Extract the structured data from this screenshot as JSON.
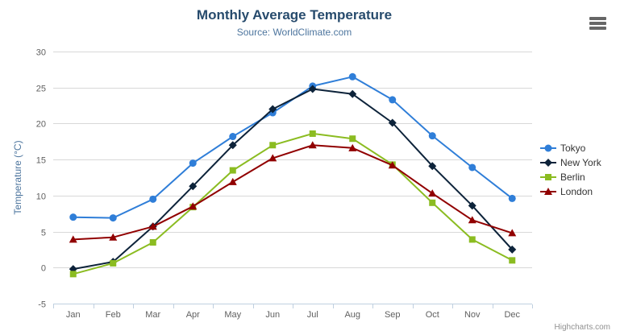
{
  "chart_data": {
    "type": "line",
    "title": "Monthly Average Temperature",
    "subtitle": "Source: WorldClimate.com",
    "categories": [
      "Jan",
      "Feb",
      "Mar",
      "Apr",
      "May",
      "Jun",
      "Jul",
      "Aug",
      "Sep",
      "Oct",
      "Nov",
      "Dec"
    ],
    "series": [
      {
        "name": "Tokyo",
        "color": "#2f7ed8",
        "marker": "circle",
        "values": [
          7.0,
          6.9,
          9.5,
          14.5,
          18.2,
          21.5,
          25.2,
          26.5,
          23.3,
          18.3,
          13.9,
          9.6
        ]
      },
      {
        "name": "New York",
        "color": "#0d233a",
        "marker": "diamond",
        "values": [
          -0.2,
          0.8,
          5.7,
          11.3,
          17.0,
          22.0,
          24.8,
          24.1,
          20.1,
          14.1,
          8.6,
          2.5
        ]
      },
      {
        "name": "Berlin",
        "color": "#8bbc21",
        "marker": "square",
        "values": [
          -0.9,
          0.6,
          3.5,
          8.4,
          13.5,
          17.0,
          18.6,
          17.9,
          14.3,
          9.0,
          3.9,
          1.0
        ]
      },
      {
        "name": "London",
        "color": "#910000",
        "marker": "triangle",
        "values": [
          3.9,
          4.2,
          5.7,
          8.5,
          11.9,
          15.2,
          17.0,
          16.6,
          14.2,
          10.3,
          6.6,
          4.8
        ]
      }
    ],
    "xlabel": "",
    "ylabel": "Temperature (°C)",
    "ylim": [
      -5,
      30
    ],
    "ytick_interval": 5,
    "grid": true,
    "legend_position": "right",
    "credit": "Highcharts.com"
  },
  "colors": {
    "background": "#ffffff",
    "title": "#274b6d",
    "subtitle": "#4d759e",
    "axis_title": "#4d759e",
    "tick_label": "#606060",
    "grid": "#d8d8d8",
    "axis_line": "#c0d0e0",
    "legend_text": "#333333",
    "credit": "#909090",
    "burger": "#666666"
  },
  "icons": {
    "menu": "hamburger-icon"
  }
}
